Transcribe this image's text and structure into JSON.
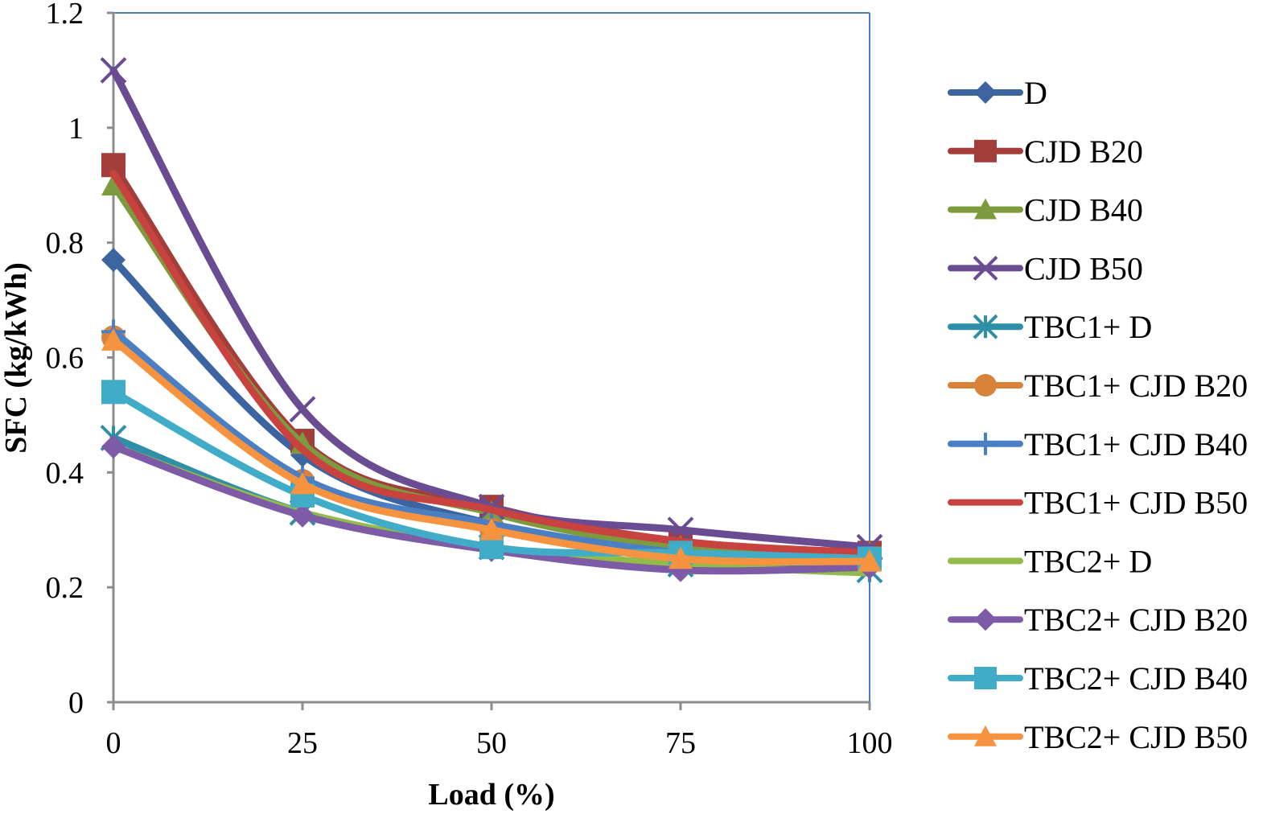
{
  "chart_data": {
    "type": "line",
    "title": "",
    "xlabel": "Load (%)",
    "ylabel": "SFC (kg/kWh)",
    "xlim": [
      0,
      100
    ],
    "ylim": [
      0,
      1.2
    ],
    "x": [
      0,
      25,
      50,
      75,
      100
    ],
    "x_ticks": [
      "0",
      "25",
      "50",
      "75",
      "100"
    ],
    "y_ticks": [
      "0",
      "0.2",
      "0.4",
      "0.6",
      "0.8",
      "1",
      "1.2"
    ],
    "y_tick_values": [
      0,
      0.2,
      0.4,
      0.6,
      0.8,
      1.0,
      1.2
    ],
    "grid": false,
    "legend_position": "right",
    "smooth": true,
    "series": [
      {
        "name": "D",
        "color": "#3B64A0",
        "marker": "diamond",
        "values": [
          0.77,
          0.43,
          0.31,
          0.26,
          0.25
        ]
      },
      {
        "name": "CJD B20",
        "color": "#A33E3B",
        "marker": "square",
        "values": [
          0.935,
          0.455,
          0.34,
          0.28,
          0.26
        ]
      },
      {
        "name": "CJD B40",
        "color": "#7E9A3E",
        "marker": "triangle",
        "values": [
          0.9,
          0.45,
          0.33,
          0.27,
          0.26
        ]
      },
      {
        "name": "CJD B50",
        "color": "#6A4C93",
        "marker": "x",
        "values": [
          1.1,
          0.51,
          0.34,
          0.3,
          0.27
        ]
      },
      {
        "name": "TBC1+ D",
        "color": "#2E8FA6",
        "marker": "star",
        "values": [
          0.46,
          0.33,
          0.27,
          0.24,
          0.23
        ]
      },
      {
        "name": "TBC1+ CJD B20",
        "color": "#D9823A",
        "marker": "circle",
        "values": [
          0.635,
          0.385,
          0.3,
          0.25,
          0.245
        ]
      },
      {
        "name": "TBC1+ CJD B40",
        "color": "#4A7FC4",
        "marker": "plus",
        "values": [
          0.645,
          0.39,
          0.31,
          0.26,
          0.25
        ]
      },
      {
        "name": "TBC1+ CJD B50",
        "color": "#C8433F",
        "marker": "none",
        "values": [
          0.92,
          0.44,
          0.335,
          0.28,
          0.26
        ]
      },
      {
        "name": "TBC2+ D",
        "color": "#93BB4A",
        "marker": "none",
        "values": [
          0.445,
          0.33,
          0.27,
          0.24,
          0.225
        ]
      },
      {
        "name": "TBC2+ CJD B20",
        "color": "#7D5BA6",
        "marker": "diamond",
        "values": [
          0.445,
          0.325,
          0.265,
          0.23,
          0.235
        ]
      },
      {
        "name": "TBC2+ CJD B40",
        "color": "#41ACC7",
        "marker": "square",
        "values": [
          0.54,
          0.36,
          0.27,
          0.26,
          0.25
        ]
      },
      {
        "name": "TBC2+ CJD B50",
        "color": "#F59340",
        "marker": "triangle",
        "values": [
          0.63,
          0.38,
          0.3,
          0.25,
          0.245
        ]
      }
    ],
    "colors": {
      "axis": "#8C8C8C",
      "plot_border": "#4A7FC4"
    }
  }
}
